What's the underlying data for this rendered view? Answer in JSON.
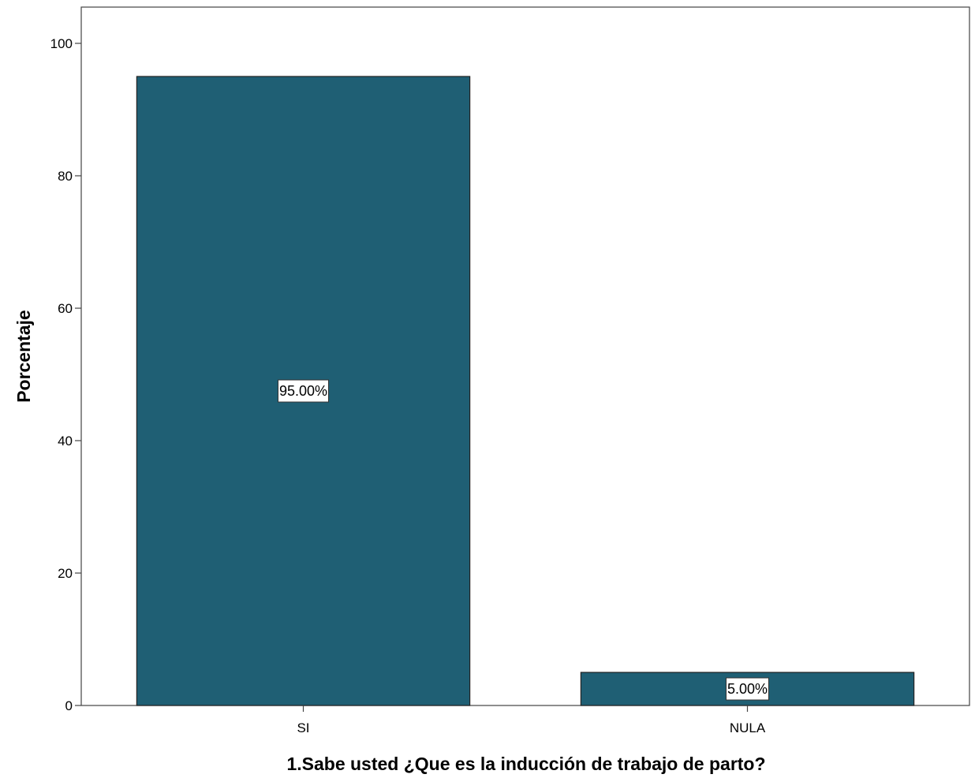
{
  "chart_data": {
    "type": "bar",
    "categories": [
      "SI",
      "NULA"
    ],
    "values": [
      95.0,
      5.0
    ],
    "data_labels": [
      "95.00%",
      "5.00%"
    ],
    "title": "",
    "xlabel": "1.Sabe usted ¿Que es la inducción de trabajo de parto?",
    "ylabel": "Porcentaje",
    "ylim": [
      0,
      105
    ],
    "yticks": [
      0,
      20,
      40,
      60,
      80,
      100
    ],
    "grid": false,
    "legend": "none",
    "bar_color": "#1f5f74"
  }
}
